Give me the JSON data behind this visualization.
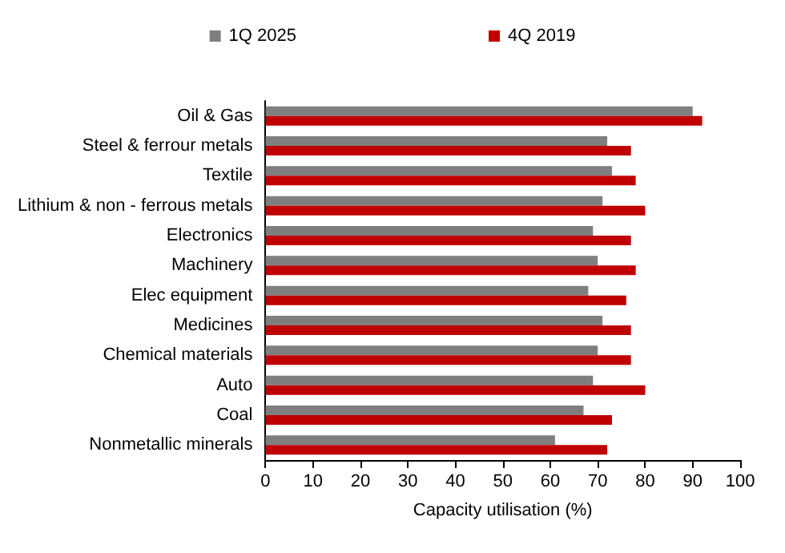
{
  "chart_data": {
    "type": "bar",
    "orientation": "horizontal",
    "xlabel": "Capacity utilisation (%)",
    "categories": [
      "Oil & Gas",
      "Steel & ferrour metals",
      "Textile",
      "Lithium & non - ferrous metals",
      "Electronics",
      "Machinery",
      "Elec equipment",
      "Medicines",
      "Chemical materials",
      "Auto",
      "Coal",
      "Nonmetallic minerals"
    ],
    "series": [
      {
        "name": "1Q 2025",
        "color": "#7f7f7f",
        "values": [
          90,
          72,
          73,
          71,
          69,
          70,
          68,
          71,
          70,
          69,
          67,
          61
        ]
      },
      {
        "name": "4Q 2019",
        "color": "#c00000",
        "values": [
          92,
          77,
          78,
          80,
          77,
          78,
          76,
          77,
          77,
          80,
          73,
          72
        ]
      }
    ],
    "xlim": [
      0,
      100
    ],
    "xticks": [
      0,
      10,
      20,
      30,
      40,
      50,
      60,
      70,
      80,
      90,
      100
    ],
    "grid": false,
    "legend": "top"
  }
}
